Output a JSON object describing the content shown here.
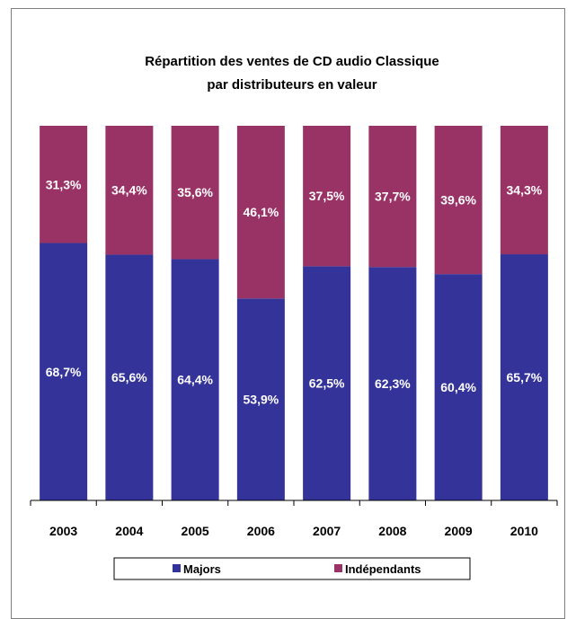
{
  "chart_data": {
    "type": "bar",
    "stacked": true,
    "title_lines": [
      "Répartition des ventes de CD audio Classique",
      "par distributeurs en valeur"
    ],
    "categories": [
      "2003",
      "2004",
      "2005",
      "2006",
      "2007",
      "2008",
      "2009",
      "2010"
    ],
    "series": [
      {
        "name": "Majors",
        "color": "#333399",
        "values": [
          68.7,
          65.6,
          64.4,
          53.9,
          62.5,
          62.3,
          60.4,
          65.7
        ],
        "labels": [
          "68,7%",
          "65,6%",
          "64,4%",
          "53,9%",
          "62,5%",
          "62,3%",
          "60,4%",
          "65,7%"
        ]
      },
      {
        "name": "Indépendants",
        "color": "#993366",
        "values": [
          31.3,
          34.4,
          35.6,
          46.1,
          37.5,
          37.7,
          39.6,
          34.3
        ],
        "labels": [
          "31,3%",
          "34,4%",
          "35,6%",
          "46,1%",
          "37,5%",
          "37,7%",
          "39,6%",
          "34,3%"
        ]
      }
    ],
    "ylim": [
      0,
      100
    ],
    "grid": false,
    "legend_position": "bottom"
  }
}
